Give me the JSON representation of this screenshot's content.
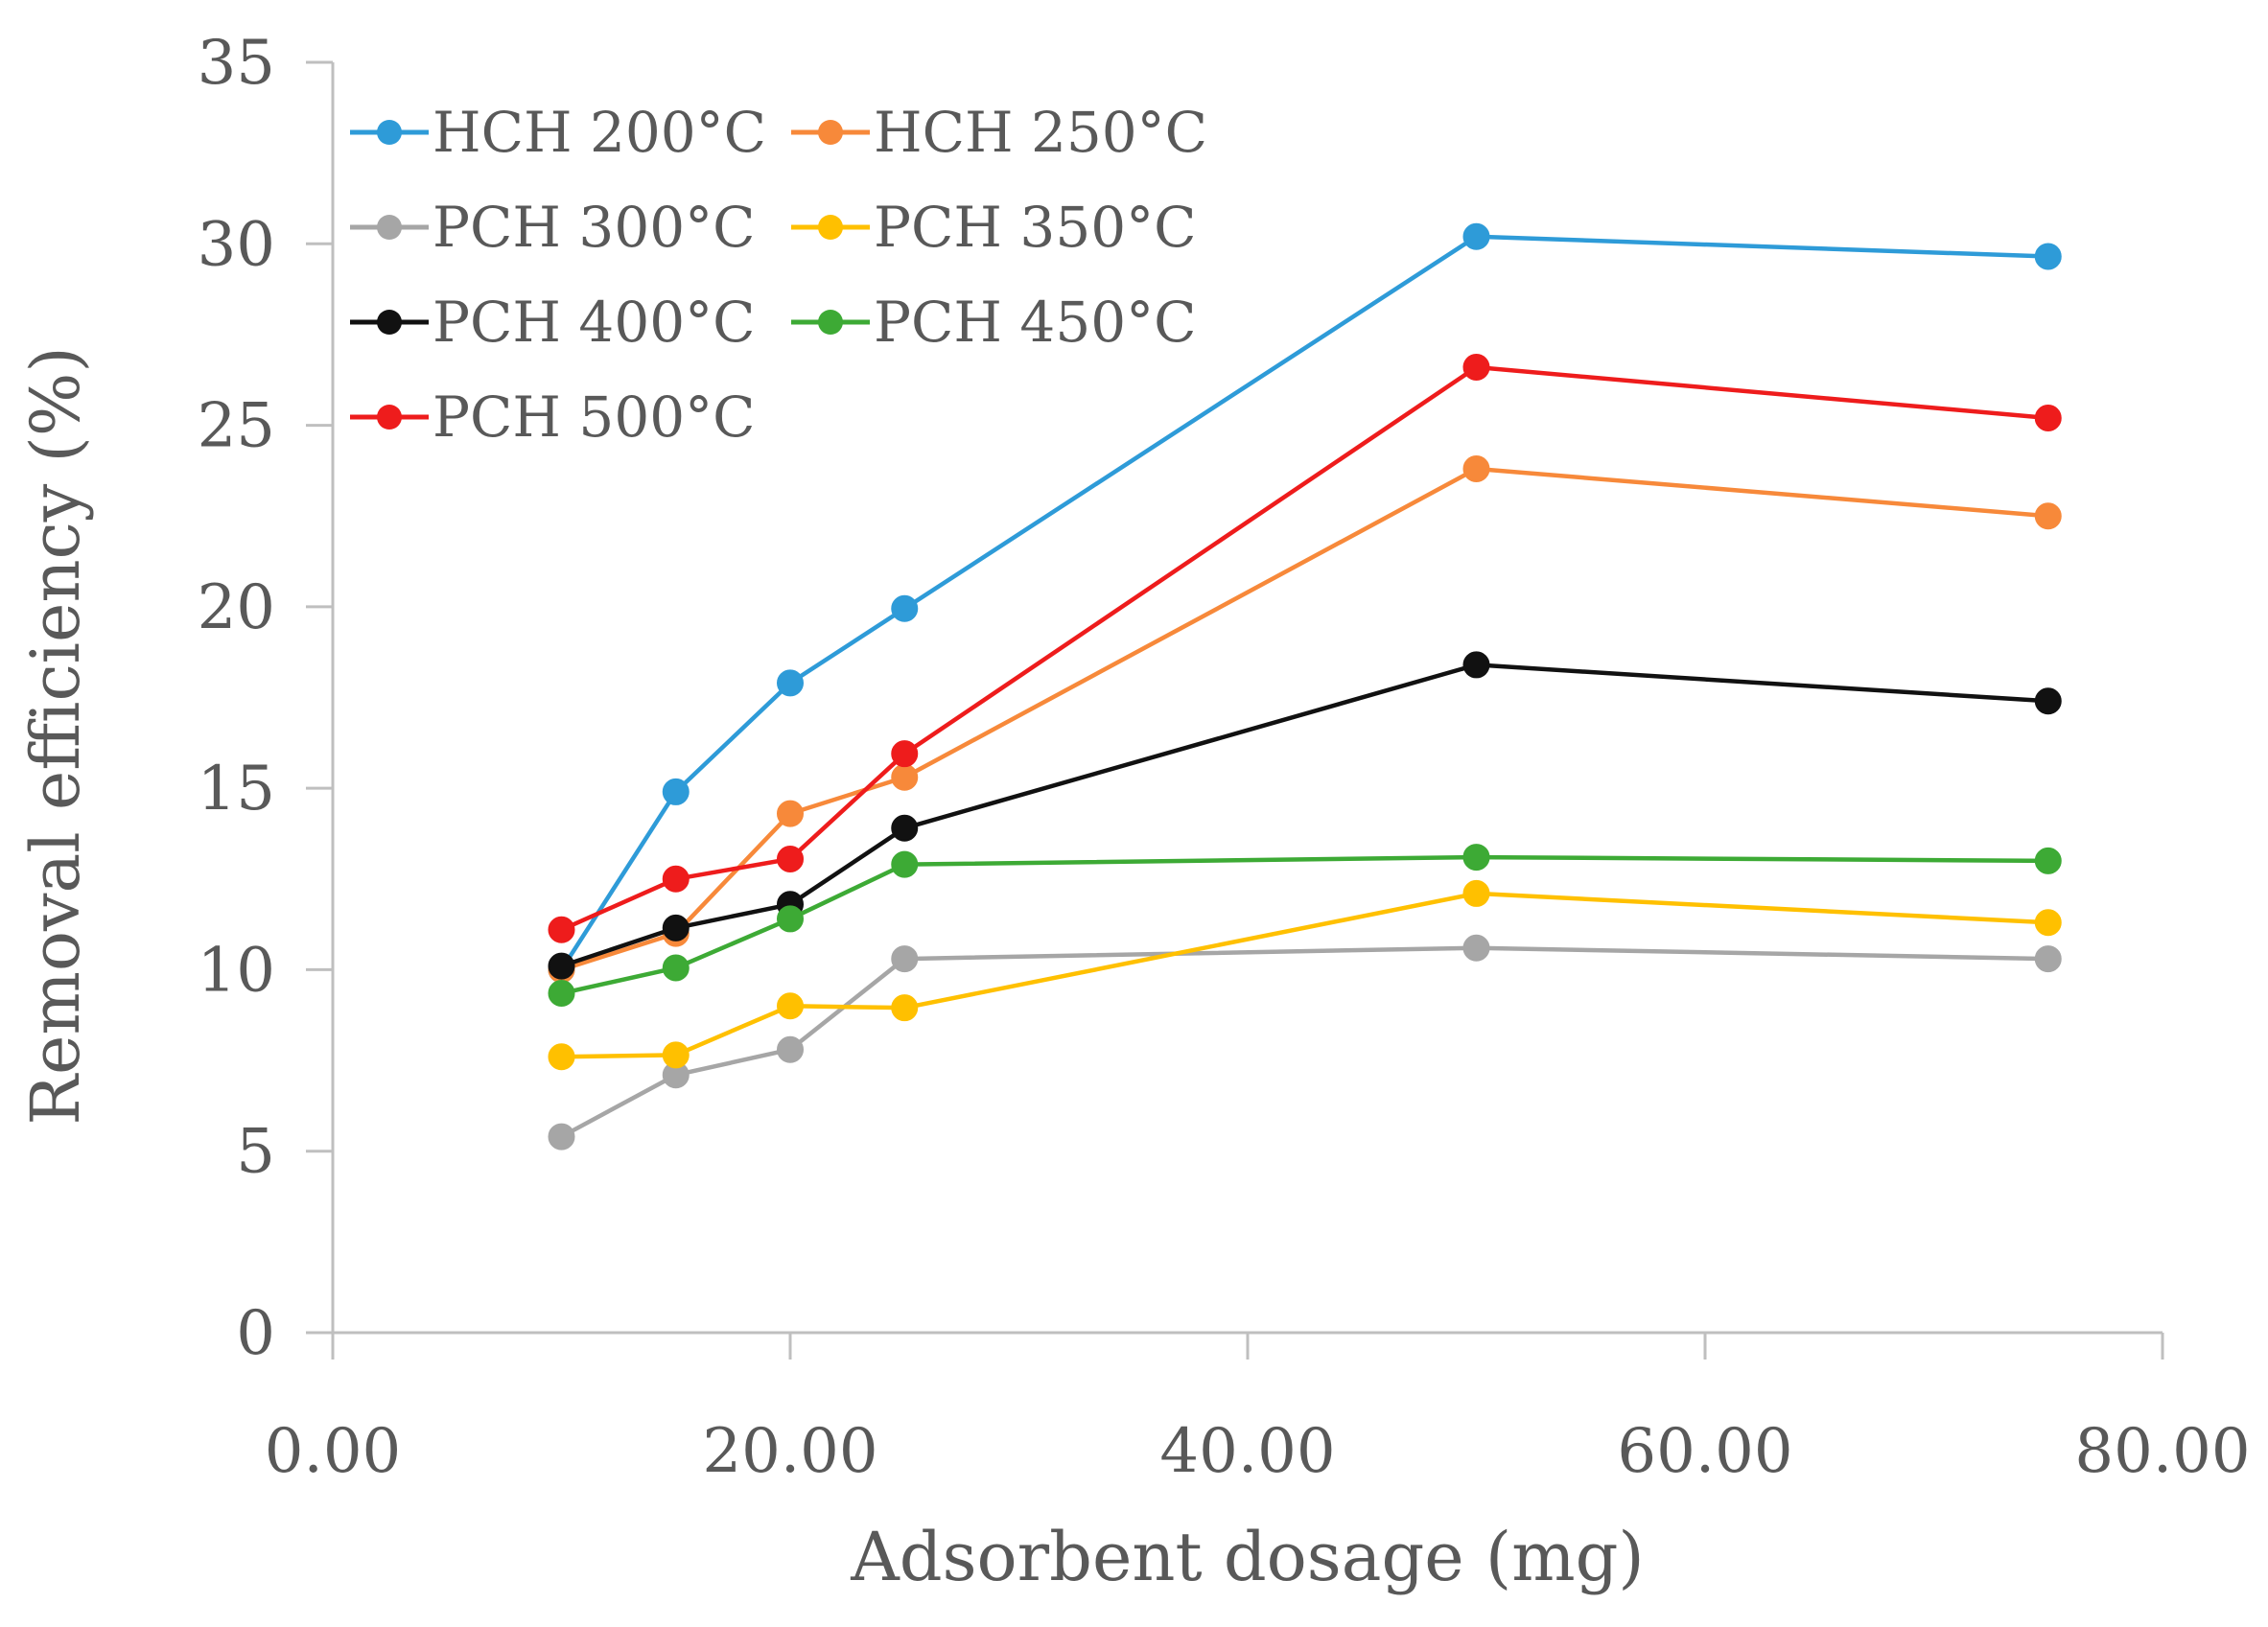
{
  "chart_data": {
    "type": "line",
    "title": "",
    "xlabel": "Adsorbent dosage (mg)",
    "ylabel": "Removal efficiency (%)",
    "xlim": [
      0,
      80
    ],
    "ylim": [
      0,
      35
    ],
    "x_ticks": [
      "0.00",
      "20.00",
      "40.00",
      "60.00",
      "80.00"
    ],
    "y_ticks": [
      "0",
      "5",
      "10",
      "15",
      "20",
      "25",
      "30",
      "35"
    ],
    "x_tick_values": [
      0,
      20,
      40,
      60,
      80
    ],
    "y_tick_values": [
      0,
      5,
      10,
      15,
      20,
      25,
      30,
      35
    ],
    "grid": false,
    "legend_position": "top-left",
    "x": [
      10,
      15,
      20,
      25,
      50,
      75
    ],
    "series": [
      {
        "name": "HCH 200°C",
        "color": "#2E9BD8",
        "values": [
          10.0,
          14.9,
          17.9,
          19.95,
          30.2,
          29.65
        ]
      },
      {
        "name": "HCH 250°C",
        "color": "#F7893A",
        "values": [
          10.0,
          11.0,
          14.3,
          15.3,
          23.8,
          22.5
        ]
      },
      {
        "name": "PCH 300°C",
        "color": "#A6A6A6",
        "values": [
          5.4,
          7.1,
          7.8,
          10.3,
          10.6,
          10.3
        ]
      },
      {
        "name": "PCH 350°C",
        "color": "#FFC000",
        "values": [
          7.6,
          7.65,
          9.0,
          8.95,
          12.1,
          11.3
        ]
      },
      {
        "name": "PCH 400°C",
        "color": "#111111",
        "values": [
          10.1,
          11.15,
          11.8,
          13.9,
          18.4,
          17.4
        ]
      },
      {
        "name": "PCH 450°C",
        "color": "#3DAA35",
        "values": [
          9.35,
          10.05,
          11.4,
          12.9,
          13.1,
          13.0
        ]
      },
      {
        "name": "PCH 500°C",
        "color": "#EE1C1C",
        "values": [
          11.1,
          12.5,
          13.05,
          15.95,
          26.6,
          25.2
        ]
      }
    ]
  }
}
